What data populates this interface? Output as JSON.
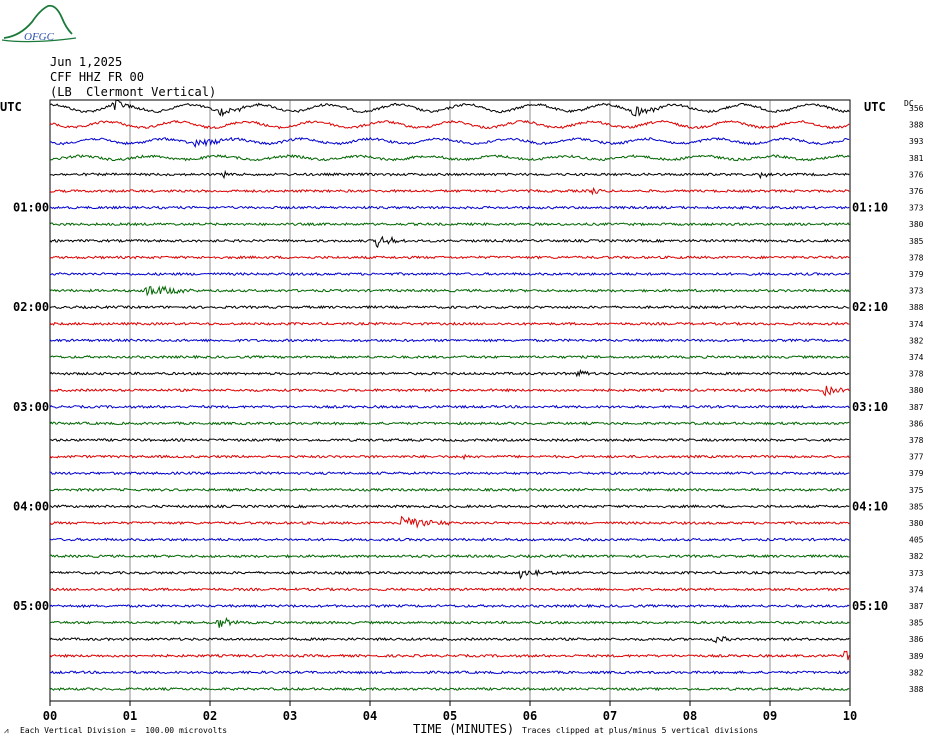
{
  "header": {
    "logo_text": "OFGC",
    "date": "Jun 1,2025",
    "station": "CFF HHZ FR 00",
    "location": "(LB  Clermont Vertical)"
  },
  "chart_data": {
    "type": "line",
    "title": "",
    "xlabel": "TIME (MINUTES)",
    "ylabel": "",
    "x_ticks": [
      "00",
      "01",
      "02",
      "03",
      "04",
      "05",
      "06",
      "07",
      "08",
      "09",
      "10"
    ],
    "xlim": [
      0,
      10
    ],
    "left_axis_title": "UTC",
    "right_axis_title": "UTC",
    "dc_label": "DC",
    "left_hour_labels": [
      {
        "row": 6,
        "label": "01:00"
      },
      {
        "row": 12,
        "label": "02:00"
      },
      {
        "row": 18,
        "label": "03:00"
      },
      {
        "row": 24,
        "label": "04:00"
      },
      {
        "row": 30,
        "label": "05:00"
      }
    ],
    "right_hour_labels": [
      {
        "row": 6,
        "label": "01:10"
      },
      {
        "row": 12,
        "label": "02:10"
      },
      {
        "row": 18,
        "label": "03:10"
      },
      {
        "row": 24,
        "label": "04:10"
      },
      {
        "row": 30,
        "label": "05:10"
      }
    ],
    "dc_values": [
      "356",
      "388",
      "393",
      "381",
      "376",
      "376",
      "373",
      "380",
      "385",
      "378",
      "379",
      "373",
      "388",
      "374",
      "382",
      "374",
      "378",
      "380",
      "387",
      "386",
      "378",
      "377",
      "379",
      "375",
      "385",
      "380",
      "405",
      "382",
      "373",
      "374",
      "387",
      "385",
      "386",
      "389",
      "382",
      "388"
    ],
    "trace_colors": [
      "#000000",
      "#dd0000",
      "#0000cc",
      "#006600"
    ],
    "scale_note": "Each Vertical Division =  100.00 microvolts",
    "clip_note": "Traces clipped at plus/minus 5 vertical divisions",
    "events": [
      {
        "row": 0,
        "minute": 0.8,
        "amp": 6,
        "dur": 0.4
      },
      {
        "row": 0,
        "minute": 2.1,
        "amp": 5,
        "dur": 0.5
      },
      {
        "row": 0,
        "minute": 7.3,
        "amp": 7,
        "dur": 0.4
      },
      {
        "row": 2,
        "minute": 1.8,
        "amp": 6,
        "dur": 0.5
      },
      {
        "row": 4,
        "minute": 2.2,
        "amp": 4,
        "dur": 0.1
      },
      {
        "row": 4,
        "minute": 8.9,
        "amp": 4,
        "dur": 0.1
      },
      {
        "row": 5,
        "minute": 6.8,
        "amp": 4,
        "dur": 0.1
      },
      {
        "row": 8,
        "minute": 4.1,
        "amp": 6,
        "dur": 0.4
      },
      {
        "row": 11,
        "minute": 1.2,
        "amp": 7,
        "dur": 0.6
      },
      {
        "row": 16,
        "minute": 6.6,
        "amp": 5,
        "dur": 0.2
      },
      {
        "row": 17,
        "minute": 9.7,
        "amp": 5,
        "dur": 0.3
      },
      {
        "row": 21,
        "minute": 5.2,
        "amp": 4,
        "dur": 0.15
      },
      {
        "row": 25,
        "minute": 4.4,
        "amp": 8,
        "dur": 0.6
      },
      {
        "row": 28,
        "minute": 5.9,
        "amp": 6,
        "dur": 0.6
      },
      {
        "row": 31,
        "minute": 2.1,
        "amp": 7,
        "dur": 0.3
      },
      {
        "row": 32,
        "minute": 8.3,
        "amp": 4,
        "dur": 0.3
      },
      {
        "row": 33,
        "minute": 9.95,
        "amp": 7,
        "dur": 0.1
      }
    ]
  }
}
